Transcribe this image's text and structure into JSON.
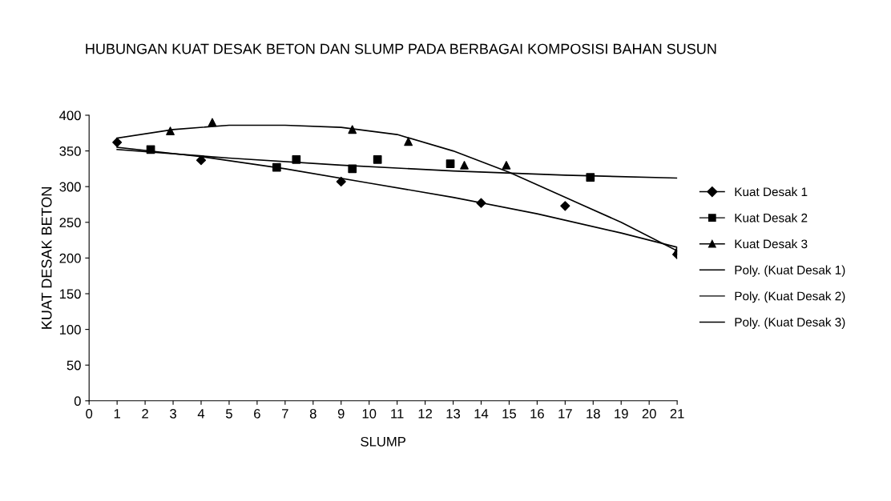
{
  "chart_data": {
    "type": "scatter",
    "title": "HUBUNGAN KUAT DESAK BETON DAN SLUMP PADA BERBAGAI KOMPOSISI BAHAN SUSUN",
    "xlabel": "SLUMP",
    "ylabel": "KUAT DESAK BETON",
    "xlim": [
      0,
      21
    ],
    "xticks": [
      0,
      1,
      2,
      3,
      4,
      5,
      6,
      7,
      8,
      9,
      10,
      11,
      12,
      13,
      14,
      15,
      16,
      17,
      18,
      19,
      20,
      21
    ],
    "ylim": [
      0,
      400
    ],
    "yticks": [
      0,
      50,
      100,
      150,
      200,
      250,
      300,
      350,
      400
    ],
    "grid": false,
    "legend": "right",
    "series": [
      {
        "name": "Kuat Desak 1",
        "marker": "diamond",
        "color": "#000000",
        "x": [
          1,
          4,
          9,
          14,
          17,
          21
        ],
        "values": [
          362,
          337,
          307,
          277,
          273,
          205
        ]
      },
      {
        "name": "Kuat Desak 2",
        "marker": "square",
        "color": "#000000",
        "x": [
          2.2,
          6.7,
          7.4,
          9.4,
          10.3,
          12.9,
          17.9
        ],
        "values": [
          352,
          327,
          338,
          325,
          338,
          332,
          313
        ]
      },
      {
        "name": "Kuat Desak 3",
        "marker": "triangle",
        "color": "#000000",
        "x": [
          2.9,
          4.4,
          9.4,
          11.4,
          13.4,
          14.9,
          21
        ],
        "values": [
          378,
          390,
          380,
          363,
          330,
          330,
          210
        ]
      },
      {
        "name": "Poly. (Kuat Desak 1)",
        "type": "line",
        "marker": "none",
        "color": "#000000",
        "x": [
          1,
          4,
          7,
          10,
          13,
          16,
          19,
          21
        ],
        "values": [
          355,
          342,
          325,
          305,
          285,
          262,
          235,
          215
        ]
      },
      {
        "name": "Poly. (Kuat Desak 2)",
        "type": "line",
        "marker": "none",
        "color": "#000000",
        "x": [
          1,
          5,
          9,
          13,
          17,
          21
        ],
        "values": [
          352,
          340,
          330,
          322,
          316,
          312
        ]
      },
      {
        "name": "Poly. (Kuat Desak 3)",
        "type": "line",
        "marker": "none",
        "color": "#000000",
        "x": [
          1,
          3,
          5,
          7,
          9,
          11,
          13,
          15,
          17,
          19,
          21
        ],
        "values": [
          368,
          380,
          386,
          386,
          383,
          373,
          350,
          320,
          285,
          250,
          210
        ]
      }
    ]
  }
}
